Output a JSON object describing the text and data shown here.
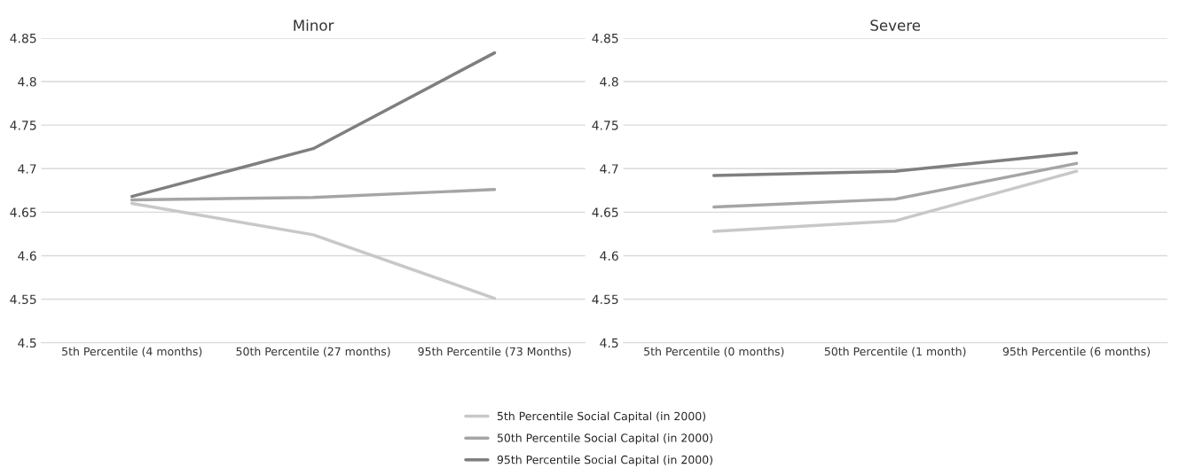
{
  "chart_data": [
    {
      "type": "line",
      "title": "Minor",
      "categories": [
        "5th Percentile (4 months)",
        "50th Percentile (27 months)",
        "95th Percentile (73 Months)"
      ],
      "series": [
        {
          "color": "#c8c8c8",
          "values": [
            4.66,
            4.624,
            4.551
          ]
        },
        {
          "color": "#a5a5a5",
          "values": [
            4.664,
            4.667,
            4.676
          ]
        },
        {
          "color": "#7f7f7f",
          "values": [
            4.668,
            4.723,
            4.833
          ]
        }
      ],
      "ylim": [
        4.5,
        4.85
      ],
      "yticks": [
        4.5,
        4.55,
        4.6,
        4.65,
        4.7,
        4.75,
        4.8,
        4.85
      ],
      "grid": "y",
      "marker": "none",
      "line_style": "solid"
    },
    {
      "type": "line",
      "title": "Severe",
      "categories": [
        "5th Percentile (0 months)",
        "50th Percentile (1 month)",
        "95th Percentile (6 months)"
      ],
      "series": [
        {
          "name": "5th Percentile Social Capital (in 2000)",
          "color": "#c8c8c8",
          "values": [
            4.628,
            4.64,
            4.697
          ]
        },
        {
          "name": "50th Percentile Social Capital (in 2000)",
          "color": "#a5a5a5",
          "values": [
            4.656,
            4.665,
            4.706
          ]
        },
        {
          "name": "95th Percentile Social Capital (in 2000)",
          "color": "#7f7f7f",
          "values": [
            4.692,
            4.697,
            4.718
          ]
        }
      ],
      "ylim": [
        4.5,
        4.85
      ],
      "yticks": [
        4.5,
        4.55,
        4.6,
        4.65,
        4.7,
        4.75,
        4.8,
        4.85
      ],
      "grid": "y",
      "legend": "bottom",
      "marker": "none",
      "line_style": "solid"
    }
  ]
}
